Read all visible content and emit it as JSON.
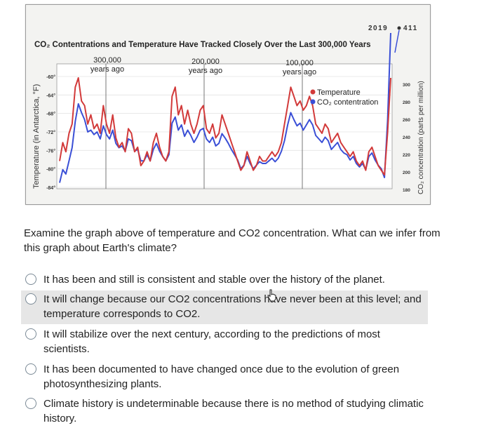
{
  "chart_data": {
    "type": "line",
    "title": "CO₂ Contentrations and Temperature Have Tracked Closely Over the Last 300,000 Years",
    "ylabel_left": "Temperature (in Antarctica, °F)",
    "ylabel_right": "CO₂ concentration (parts per million)",
    "left_ticks": [
      "-60°",
      "-64°",
      "-68°",
      "-72°",
      "-76°",
      "-80°",
      "-84°"
    ],
    "right_ticks": [
      "300",
      "280",
      "260",
      "240",
      "220",
      "200",
      "180"
    ],
    "time_markers": [
      {
        "l1": "300,000",
        "l2": "years ago"
      },
      {
        "l1": "200,000",
        "l2": "years ago"
      },
      {
        "l1": "100,000",
        "l2": "years ago"
      }
    ],
    "end_labels": {
      "year": "2019",
      "value": "411"
    },
    "legend": [
      "Temperature",
      "CO₂ contentration"
    ],
    "colors": {
      "temperature": "#d23a3a",
      "co2": "#3a4fd6"
    },
    "temperature_series": [
      -78,
      -74,
      -76,
      -72,
      -70,
      -62,
      -60,
      -65,
      -66,
      -70,
      -68,
      -71,
      -70,
      -72,
      -66,
      -70,
      -72,
      -68,
      -73,
      -75,
      -74,
      -76,
      -71,
      -72,
      -76,
      -75,
      -79,
      -78,
      -76,
      -78,
      -74,
      -72,
      -75,
      -77,
      -78,
      -76,
      -64,
      -62,
      -68,
      -66,
      -70,
      -67,
      -70,
      -72,
      -70,
      -67,
      -66,
      -71,
      -72,
      -70,
      -73,
      -72,
      -68,
      -70,
      -72,
      -74,
      -76,
      -78,
      -80,
      -79,
      -76,
      -78,
      -80,
      -79,
      -77,
      -78,
      -78,
      -77,
      -76,
      -77,
      -76,
      -74,
      -70,
      -66,
      -62,
      -64,
      -66,
      -65,
      -67,
      -66,
      -64,
      -66,
      -70,
      -71,
      -72,
      -70,
      -71,
      -74,
      -73,
      -72,
      -74,
      -75,
      -76,
      -77,
      -76,
      -78,
      -79,
      -78,
      -80,
      -76,
      -75,
      -77,
      -79,
      -80,
      -81,
      -72,
      -60
    ],
    "co2_series": [
      190,
      205,
      200,
      215,
      230,
      260,
      280,
      270,
      262,
      248,
      250,
      245,
      248,
      240,
      255,
      245,
      240,
      250,
      235,
      230,
      232,
      226,
      240,
      238,
      226,
      228,
      215,
      215,
      222,
      215,
      228,
      235,
      226,
      220,
      215,
      222,
      258,
      265,
      250,
      256,
      243,
      250,
      244,
      236,
      242,
      250,
      252,
      240,
      236,
      242,
      232,
      235,
      246,
      241,
      235,
      228,
      222,
      216,
      206,
      210,
      220,
      212,
      206,
      210,
      214,
      212,
      212,
      215,
      218,
      214,
      218,
      226,
      238,
      256,
      270,
      262,
      255,
      258,
      250,
      256,
      262,
      256,
      244,
      240,
      236,
      242,
      238,
      228,
      232,
      236,
      228,
      224,
      222,
      216,
      220,
      212,
      208,
      212,
      205,
      220,
      224,
      216,
      210,
      206,
      196,
      260,
      411
    ]
  },
  "question": "Examine the graph above of temperature and CO2 concentration. What can we infer from this graph about Earth's climate?",
  "options": [
    "It has been and still is consistent and stable over the history of the planet.",
    "It will change because our CO2 concentrations have never been at this level; and temperature corresponds to CO2.",
    "It will stabilize over the next century, according to the predictions of most scientists.",
    "It has been documented to have changed once due to the evolution of green photosynthesizing plants.",
    "Climate history is undeterminable because there is no method of studying climatic history."
  ]
}
